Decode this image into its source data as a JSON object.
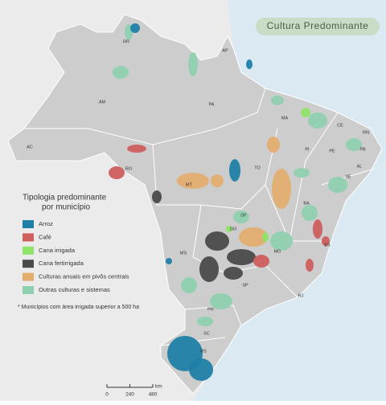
{
  "title": "Cultura Predominante",
  "legend": {
    "title_lines": [
      "Tipologia predominante",
      "por município"
    ],
    "items": [
      {
        "label": "Arroz",
        "color": "#1f7fa6"
      },
      {
        "label": "Café",
        "color": "#cf5e5e"
      },
      {
        "label": "Cana irrigada",
        "color": "#8fe36a"
      },
      {
        "label": "Cana fertirrigada",
        "color": "#4a4a4a"
      },
      {
        "label": "Culturas anuais em pivôs centrais",
        "color": "#e3ad70"
      },
      {
        "label": "Outras culturas e sistemas",
        "color": "#8fd0b0"
      }
    ]
  },
  "note": "* Municípios com área irrigada superior a 500 ha",
  "state_labels": [
    "RR",
    "AP",
    "AM",
    "PA",
    "MA",
    "CE",
    "RN",
    "PB",
    "PE",
    "AL",
    "SE",
    "PI",
    "BA",
    "TO",
    "MT",
    "RO",
    "AC",
    "GO",
    "DF",
    "MG",
    "ES",
    "RJ",
    "SP",
    "MS",
    "PR",
    "SC",
    "RS"
  ],
  "scale": {
    "ticks": [
      0,
      240,
      480
    ],
    "unit": "km"
  }
}
